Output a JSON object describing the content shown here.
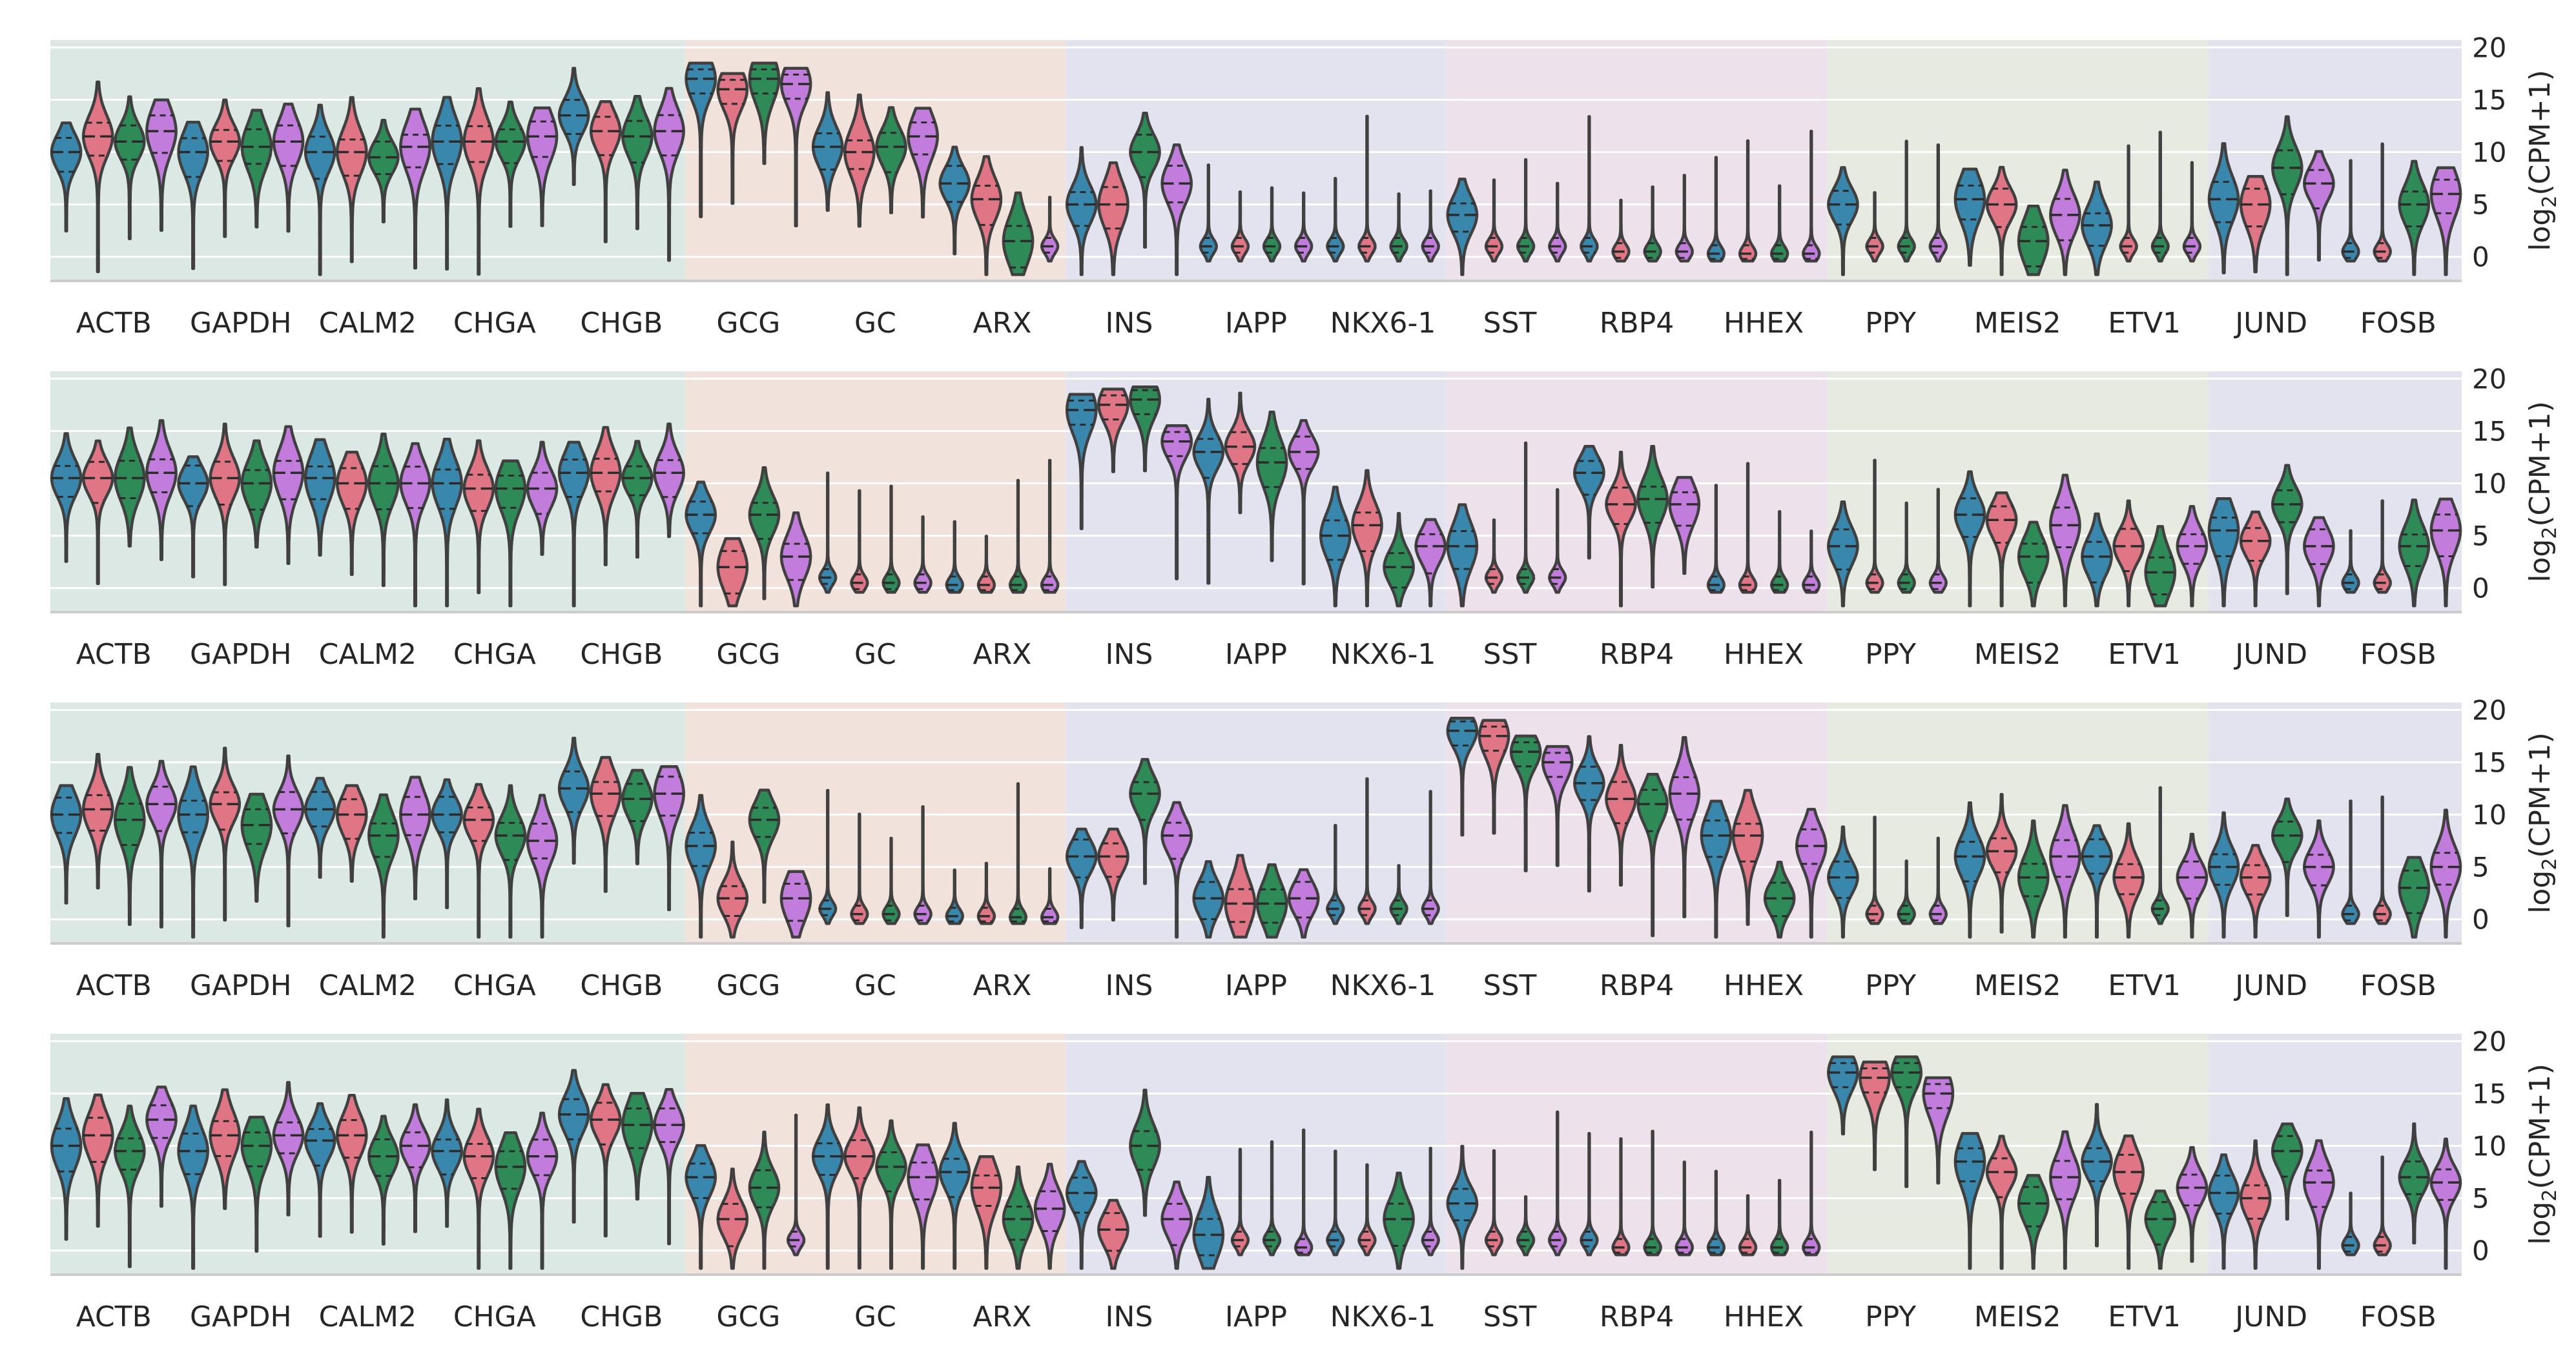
{
  "chart_data": {
    "type": "violin",
    "ylabel": "log2(CPM+1)",
    "ylabel_base": "log",
    "ylabel_sub": "2",
    "ylabel_rest": "(CPM+1)",
    "ylim": [
      -2.3,
      20.7
    ],
    "yticks": [
      0,
      5,
      10,
      15,
      20
    ],
    "grid": true,
    "genes": [
      "ACTB",
      "GAPDH",
      "CALM2",
      "CHGA",
      "CHGB",
      "GCG",
      "GC",
      "ARX",
      "INS",
      "IAPP",
      "NKX6-1",
      "SST",
      "RBP4",
      "HHEX",
      "PPY",
      "MEIS2",
      "ETV1",
      "JUND",
      "FOSB"
    ],
    "series_colors": [
      "#3a87ad",
      "#e07585",
      "#2e8b57",
      "#c27cdb"
    ],
    "gene_groups": [
      {
        "genes": 5,
        "color": "#dbe8e4"
      },
      {
        "genes": 3,
        "color": "#f1e3db"
      },
      {
        "genes": 3,
        "color": "#e2e3ee"
      },
      {
        "genes": 3,
        "color": "#ede1eb"
      },
      {
        "genes": 3,
        "color": "#e6eae0"
      },
      {
        "genes": 2,
        "color": "#e2e3ee"
      }
    ],
    "panels": [
      {
        "values": [
          [
            10,
            11.5,
            11,
            12
          ],
          [
            10,
            11,
            10.5,
            11
          ],
          [
            10,
            10,
            9.5,
            10.5
          ],
          [
            11,
            11,
            11,
            11.5
          ],
          [
            13.5,
            12,
            11.5,
            12
          ],
          [
            17,
            16,
            17,
            16.5
          ],
          [
            10.5,
            10,
            10.5,
            11.5
          ],
          [
            7,
            5.5,
            1.5,
            1
          ],
          [
            5,
            5,
            10,
            7
          ],
          [
            1,
            1,
            1,
            1
          ],
          [
            1,
            1,
            1,
            1
          ],
          [
            4,
            1,
            1,
            1
          ],
          [
            1,
            0.5,
            0.5,
            0.5
          ],
          [
            0.3,
            0.3,
            0.3,
            0.3
          ],
          [
            5,
            1,
            1,
            1
          ],
          [
            5.5,
            5,
            1.5,
            4
          ],
          [
            3,
            1,
            1,
            1
          ],
          [
            5.5,
            5,
            8.5,
            7
          ],
          [
            0.5,
            0.5,
            5,
            6
          ]
        ]
      },
      {
        "values": [
          [
            10.5,
            10.5,
            10.5,
            11
          ],
          [
            10,
            10.5,
            10,
            11
          ],
          [
            10.5,
            10,
            10,
            10
          ],
          [
            10,
            9.5,
            9.5,
            9.5
          ],
          [
            11,
            11,
            10.5,
            11
          ],
          [
            7,
            2,
            7,
            3
          ],
          [
            1,
            0.5,
            0.5,
            0.5
          ],
          [
            0.3,
            0.3,
            0.3,
            0.3
          ],
          [
            17,
            17.5,
            18,
            14
          ],
          [
            13,
            13.5,
            12,
            13
          ],
          [
            5,
            6,
            2,
            4
          ],
          [
            4,
            1,
            1,
            1
          ],
          [
            11,
            8,
            8.5,
            8
          ],
          [
            0.3,
            0.3,
            0.3,
            0.3
          ],
          [
            4,
            0.5,
            0.5,
            0.5
          ],
          [
            7,
            6.5,
            3,
            6
          ],
          [
            3,
            4,
            1.5,
            4
          ],
          [
            5.5,
            4.5,
            8,
            4
          ],
          [
            0.5,
            0.5,
            4,
            5.5
          ]
        ]
      },
      {
        "values": [
          [
            10,
            10.5,
            9.5,
            11
          ],
          [
            10,
            11,
            9,
            10.5
          ],
          [
            10.5,
            10,
            8,
            10
          ],
          [
            10,
            9.5,
            8,
            7.5
          ],
          [
            12.5,
            12,
            11.5,
            12
          ],
          [
            7,
            2,
            9.5,
            2
          ],
          [
            1,
            0.5,
            0.5,
            0.5
          ],
          [
            0.3,
            0.3,
            0.2,
            0.2
          ],
          [
            6,
            6,
            12,
            8
          ],
          [
            2,
            1.5,
            1.5,
            2
          ],
          [
            1,
            1,
            1,
            1
          ],
          [
            18,
            17.5,
            16,
            15
          ],
          [
            13,
            11.5,
            11,
            12
          ],
          [
            8,
            8,
            2,
            7
          ],
          [
            4,
            0.5,
            0.5,
            0.5
          ],
          [
            6,
            6.5,
            4,
            6
          ],
          [
            6,
            4,
            1,
            4
          ],
          [
            5,
            4,
            8,
            5
          ],
          [
            0.5,
            0.5,
            3,
            5
          ]
        ]
      },
      {
        "values": [
          [
            10,
            11,
            9.5,
            12.5
          ],
          [
            9.5,
            11,
            10,
            11
          ],
          [
            10.5,
            11,
            9,
            10
          ],
          [
            9.5,
            9,
            8,
            9
          ],
          [
            13,
            12.5,
            12,
            12
          ],
          [
            7,
            3,
            6,
            1
          ],
          [
            9,
            9,
            8,
            7
          ],
          [
            7.5,
            6,
            3,
            4
          ],
          [
            5.5,
            2,
            10,
            3
          ],
          [
            1.5,
            1,
            1,
            0.3
          ],
          [
            1,
            1,
            3,
            1
          ],
          [
            4.5,
            1,
            1,
            1
          ],
          [
            1,
            0.3,
            0.3,
            0.3
          ],
          [
            0.3,
            0.3,
            0.3,
            0.3
          ],
          [
            17,
            16.5,
            17,
            15
          ],
          [
            8.5,
            7.5,
            4.5,
            7
          ],
          [
            8.5,
            7.5,
            3,
            6
          ],
          [
            5.5,
            5,
            9.5,
            6.5
          ],
          [
            0.5,
            0.5,
            7,
            6.5
          ]
        ]
      }
    ]
  }
}
